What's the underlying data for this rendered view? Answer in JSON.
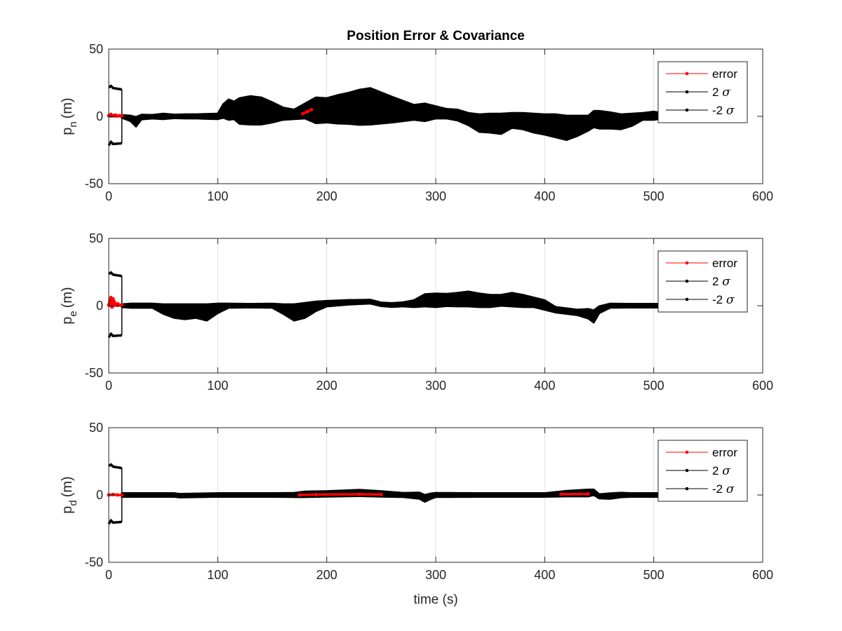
{
  "figure": {
    "title": "Position Error & Covariance",
    "xlabel": "time (s)"
  },
  "chart_data": [
    {
      "type": "line",
      "ylabel_main": "p",
      "ylabel_sub": "n",
      "ylabel_unit": "(m)",
      "xlim": [
        0,
        600
      ],
      "ylim": [
        -50,
        50
      ],
      "xticks": [
        "0",
        "100",
        "200",
        "300",
        "400",
        "500",
        "600"
      ],
      "yticks": [
        "-50",
        "0",
        "50"
      ],
      "grid": "x",
      "legend": {
        "position": "top-right",
        "entries": [
          "error",
          "2 σ",
          "-2 σ"
        ]
      },
      "colors": {
        "error": "#ff0000",
        "sigma": "#000000"
      },
      "init_sigma": 20,
      "init_end": 12,
      "band": [
        [
          12,
          0.5
        ],
        [
          20,
          1.5
        ],
        [
          25,
          3.0
        ],
        [
          30,
          1.2
        ],
        [
          40,
          0.8
        ],
        [
          50,
          1.5
        ],
        [
          60,
          0.8
        ],
        [
          70,
          1.0
        ],
        [
          80,
          1.0
        ],
        [
          90,
          1.3
        ],
        [
          100,
          1.5
        ],
        [
          105,
          4.5
        ],
        [
          110,
          7.0
        ],
        [
          115,
          6.0
        ],
        [
          120,
          9.0
        ],
        [
          130,
          10.0
        ],
        [
          140,
          9.5
        ],
        [
          150,
          7.0
        ],
        [
          160,
          4.0
        ],
        [
          170,
          3.0
        ],
        [
          180,
          5.0
        ],
        [
          190,
          9.0
        ],
        [
          200,
          8.5
        ],
        [
          210,
          10.0
        ],
        [
          220,
          11.0
        ],
        [
          230,
          12.5
        ],
        [
          240,
          13.0
        ],
        [
          250,
          11.0
        ],
        [
          260,
          9.0
        ],
        [
          270,
          7.0
        ],
        [
          280,
          5.0
        ],
        [
          290,
          6.0
        ],
        [
          300,
          4.0
        ],
        [
          310,
          3.0
        ],
        [
          320,
          3.5
        ],
        [
          330,
          4.0
        ],
        [
          340,
          6.0
        ],
        [
          350,
          6.5
        ],
        [
          360,
          7.0
        ],
        [
          370,
          5.0
        ],
        [
          380,
          5.5
        ],
        [
          390,
          6.5
        ],
        [
          400,
          7.0
        ],
        [
          410,
          8.0
        ],
        [
          420,
          8.5
        ],
        [
          430,
          7.0
        ],
        [
          440,
          5.0
        ],
        [
          450,
          6.0
        ],
        [
          460,
          5.5
        ],
        [
          470,
          5.0
        ],
        [
          480,
          4.0
        ],
        [
          490,
          2.0
        ],
        [
          500,
          2.5
        ],
        [
          508,
          1.5
        ]
      ],
      "center": [
        [
          12,
          0
        ],
        [
          20,
          -1.5
        ],
        [
          25,
          -4.0
        ],
        [
          30,
          -0.5
        ],
        [
          50,
          0
        ],
        [
          100,
          0
        ],
        [
          105,
          4.0
        ],
        [
          110,
          5.0
        ],
        [
          120,
          4.0
        ],
        [
          130,
          4.5
        ],
        [
          140,
          4.0
        ],
        [
          150,
          3.0
        ],
        [
          160,
          2.0
        ],
        [
          170,
          1.5
        ],
        [
          180,
          4.0
        ],
        [
          190,
          4.5
        ],
        [
          200,
          4.5
        ],
        [
          220,
          6.0
        ],
        [
          240,
          7.5
        ],
        [
          260,
          5.0
        ],
        [
          280,
          3.0
        ],
        [
          300,
          3.0
        ],
        [
          320,
          1.0
        ],
        [
          330,
          -2.0
        ],
        [
          340,
          -5.0
        ],
        [
          350,
          -5.0
        ],
        [
          360,
          -5.5
        ],
        [
          370,
          -3.0
        ],
        [
          380,
          -3.5
        ],
        [
          390,
          -5.0
        ],
        [
          400,
          -6.0
        ],
        [
          410,
          -7.0
        ],
        [
          420,
          -8.5
        ],
        [
          430,
          -7.0
        ],
        [
          440,
          -5.0
        ],
        [
          445,
          -2.0
        ],
        [
          450,
          -2.5
        ],
        [
          460,
          -3.0
        ],
        [
          470,
          -4.0
        ],
        [
          480,
          -2.5
        ],
        [
          490,
          0
        ],
        [
          500,
          0.5
        ],
        [
          508,
          0.5
        ]
      ],
      "error": [
        [
          0,
          0.5
        ],
        [
          2,
          1.5
        ],
        [
          4,
          0.5
        ],
        [
          6,
          1.0
        ],
        [
          8,
          0.3
        ],
        [
          10,
          0.5
        ],
        [
          12,
          0.5
        ],
        [
          178,
          2.0
        ],
        [
          182,
          3.5
        ],
        [
          186,
          5.0
        ]
      ]
    },
    {
      "type": "line",
      "ylabel_main": "p",
      "ylabel_sub": "e",
      "ylabel_unit": "(m)",
      "xlim": [
        0,
        600
      ],
      "ylim": [
        -50,
        50
      ],
      "xticks": [
        "0",
        "100",
        "200",
        "300",
        "400",
        "500",
        "600"
      ],
      "yticks": [
        "-50",
        "0",
        "50"
      ],
      "grid": "x",
      "legend": {
        "position": "top-right",
        "entries": [
          "error",
          "2 σ",
          "-2 σ"
        ]
      },
      "colors": {
        "error": "#ff0000",
        "sigma": "#000000"
      },
      "init_sigma": 22,
      "init_end": 12,
      "band": [
        [
          12,
          0.5
        ],
        [
          20,
          1.0
        ],
        [
          40,
          1.0
        ],
        [
          50,
          3.0
        ],
        [
          60,
          4.5
        ],
        [
          70,
          5.0
        ],
        [
          80,
          4.5
        ],
        [
          90,
          5.5
        ],
        [
          100,
          3.0
        ],
        [
          110,
          1.0
        ],
        [
          130,
          0.8
        ],
        [
          150,
          1.0
        ],
        [
          160,
          3.0
        ],
        [
          170,
          5.5
        ],
        [
          180,
          5.0
        ],
        [
          190,
          3.0
        ],
        [
          200,
          1.5
        ],
        [
          230,
          1.0
        ],
        [
          250,
          0.8
        ],
        [
          270,
          1.0
        ],
        [
          280,
          2.0
        ],
        [
          290,
          4.0
        ],
        [
          300,
          4.5
        ],
        [
          310,
          4.0
        ],
        [
          320,
          4.5
        ],
        [
          330,
          5.0
        ],
        [
          340,
          4.5
        ],
        [
          350,
          4.0
        ],
        [
          360,
          3.5
        ],
        [
          370,
          4.5
        ],
        [
          380,
          4.0
        ],
        [
          390,
          3.0
        ],
        [
          400,
          3.0
        ],
        [
          410,
          1.5
        ],
        [
          420,
          1.5
        ],
        [
          430,
          1.5
        ],
        [
          440,
          3.0
        ],
        [
          445,
          4.0
        ],
        [
          450,
          2.0
        ],
        [
          460,
          1.0
        ],
        [
          480,
          0.8
        ],
        [
          500,
          0.8
        ],
        [
          508,
          0.8
        ]
      ],
      "center": [
        [
          12,
          0
        ],
        [
          40,
          0
        ],
        [
          50,
          -2.5
        ],
        [
          60,
          -4.0
        ],
        [
          70,
          -4.5
        ],
        [
          80,
          -4.0
        ],
        [
          90,
          -5.0
        ],
        [
          100,
          -2.0
        ],
        [
          110,
          0
        ],
        [
          150,
          0
        ],
        [
          160,
          -2.5
        ],
        [
          170,
          -5.0
        ],
        [
          180,
          -3.5
        ],
        [
          190,
          -0.5
        ],
        [
          200,
          1.5
        ],
        [
          220,
          2.5
        ],
        [
          240,
          3.0
        ],
        [
          250,
          1.0
        ],
        [
          260,
          0.5
        ],
        [
          280,
          1.5
        ],
        [
          290,
          4.0
        ],
        [
          300,
          4.0
        ],
        [
          320,
          4.5
        ],
        [
          330,
          5.0
        ],
        [
          340,
          4.0
        ],
        [
          350,
          3.5
        ],
        [
          370,
          4.5
        ],
        [
          390,
          2.5
        ],
        [
          400,
          0.5
        ],
        [
          410,
          -3.0
        ],
        [
          420,
          -4.0
        ],
        [
          430,
          -5.0
        ],
        [
          440,
          -6.0
        ],
        [
          445,
          -8.0
        ],
        [
          450,
          -3.0
        ],
        [
          460,
          0
        ],
        [
          480,
          0
        ],
        [
          500,
          0
        ],
        [
          508,
          0
        ]
      ],
      "error": [
        [
          0,
          0.5
        ],
        [
          1,
          4.0
        ],
        [
          2,
          6.0
        ],
        [
          3,
          -1.0
        ],
        [
          4,
          5.0
        ],
        [
          5,
          3.0
        ],
        [
          6,
          0.5
        ],
        [
          8,
          1.5
        ],
        [
          10,
          0.5
        ],
        [
          12,
          0.5
        ]
      ]
    },
    {
      "type": "line",
      "ylabel_main": "p",
      "ylabel_sub": "d",
      "ylabel_unit": "(m)",
      "xlim": [
        0,
        600
      ],
      "ylim": [
        -50,
        50
      ],
      "xticks": [
        "0",
        "100",
        "200",
        "300",
        "400",
        "500",
        "600"
      ],
      "yticks": [
        "-50",
        "0",
        "50"
      ],
      "grid": "x",
      "legend": {
        "position": "top-right",
        "entries": [
          "error",
          "2 σ",
          "-2 σ"
        ]
      },
      "colors": {
        "error": "#ff0000",
        "sigma": "#000000"
      },
      "init_sigma": 20,
      "init_end": 12,
      "band": [
        [
          12,
          0.8
        ],
        [
          50,
          0.8
        ],
        [
          100,
          0.8
        ],
        [
          150,
          0.8
        ],
        [
          170,
          1.0
        ],
        [
          180,
          1.5
        ],
        [
          200,
          1.5
        ],
        [
          230,
          1.8
        ],
        [
          250,
          1.5
        ],
        [
          270,
          1.0
        ],
        [
          290,
          2.0
        ],
        [
          300,
          1.0
        ],
        [
          350,
          0.8
        ],
        [
          400,
          0.8
        ],
        [
          420,
          1.5
        ],
        [
          440,
          2.0
        ],
        [
          450,
          1.0
        ],
        [
          460,
          1.5
        ],
        [
          480,
          0.8
        ],
        [
          500,
          0.8
        ],
        [
          508,
          0.8
        ]
      ],
      "center": [
        [
          12,
          0
        ],
        [
          60,
          0
        ],
        [
          65,
          -0.5
        ],
        [
          100,
          0
        ],
        [
          160,
          0
        ],
        [
          170,
          0
        ],
        [
          180,
          0.5
        ],
        [
          200,
          0.8
        ],
        [
          230,
          1.5
        ],
        [
          250,
          0.8
        ],
        [
          270,
          0
        ],
        [
          285,
          -0.5
        ],
        [
          290,
          -2.5
        ],
        [
          295,
          -1.0
        ],
        [
          300,
          0
        ],
        [
          350,
          0
        ],
        [
          400,
          0
        ],
        [
          420,
          1.0
        ],
        [
          440,
          1.5
        ],
        [
          445,
          2.0
        ],
        [
          450,
          -1.0
        ],
        [
          460,
          -0.8
        ],
        [
          470,
          0
        ],
        [
          500,
          0
        ],
        [
          508,
          0
        ]
      ],
      "error": [
        [
          0,
          0
        ],
        [
          4,
          0.3
        ],
        [
          8,
          0
        ],
        [
          12,
          0
        ],
        [
          175,
          0
        ],
        [
          190,
          0.3
        ],
        [
          230,
          0.5
        ],
        [
          250,
          0.3
        ],
        [
          415,
          0.5
        ],
        [
          440,
          0.8
        ]
      ]
    }
  ]
}
